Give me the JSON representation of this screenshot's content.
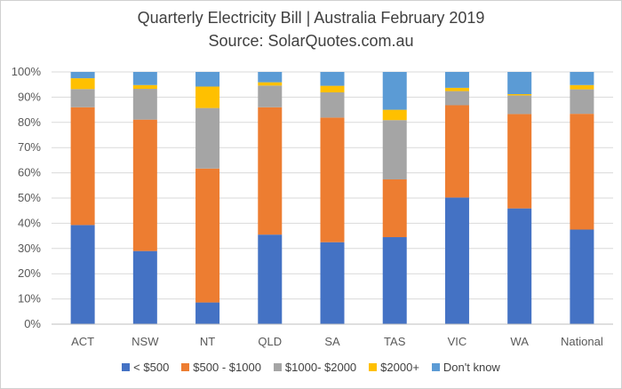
{
  "chart_data": {
    "type": "bar",
    "stacked": true,
    "title": "Quarterly Electricity Bill | Australia February 2019",
    "subtitle": "Source: SolarQuotes.com.au",
    "categories": [
      "ACT",
      "NSW",
      "NT",
      "QLD",
      "SA",
      "TAS",
      "VIC",
      "WA",
      "National"
    ],
    "ylim": [
      0,
      100
    ],
    "yticks": [
      0,
      10,
      20,
      30,
      40,
      50,
      60,
      70,
      80,
      90,
      100
    ],
    "ytick_labels": [
      "0%",
      "10%",
      "20%",
      "30%",
      "40%",
      "50%",
      "60%",
      "70%",
      "80%",
      "90%",
      "100%"
    ],
    "grid": true,
    "legend_position": "bottom",
    "series": [
      {
        "name": "< $500",
        "color": "#4472c4",
        "values": [
          39.3,
          29.0,
          8.6,
          35.5,
          32.5,
          34.5,
          50.2,
          45.9,
          37.5
        ]
      },
      {
        "name": "$500 - $1000",
        "color": "#ed7d31",
        "values": [
          46.7,
          52.1,
          53.1,
          50.5,
          49.4,
          22.9,
          36.6,
          37.4,
          45.9
        ]
      },
      {
        "name": "$1000- $2000",
        "color": "#a5a5a5",
        "values": [
          7.2,
          12.2,
          24.0,
          8.6,
          10.0,
          23.5,
          5.6,
          7.4,
          9.7
        ]
      },
      {
        "name": "$2000+",
        "color": "#ffc000",
        "values": [
          4.3,
          1.5,
          8.5,
          1.3,
          2.6,
          4.1,
          1.3,
          0.5,
          1.7
        ]
      },
      {
        "name": "Don't know",
        "color": "#5b9bd5",
        "values": [
          2.5,
          5.2,
          5.8,
          4.1,
          5.5,
          15.0,
          6.3,
          8.8,
          5.2
        ]
      }
    ]
  }
}
